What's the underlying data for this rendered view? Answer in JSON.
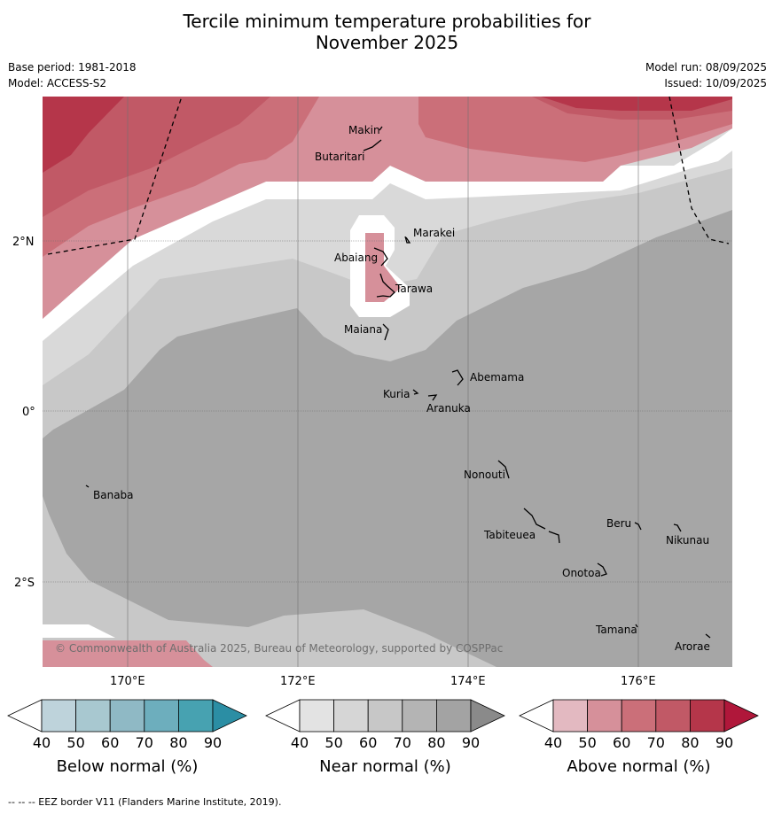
{
  "title_line1": "Tercile minimum temperature probabilities for",
  "title_line2": "November 2025",
  "base_period": "Base period: 1981-2018",
  "model": "Model: ACCESS-S2",
  "model_run": "Model run: 08/09/2025",
  "issued": "Issued: 10/09/2025",
  "copyright": "© Commonwealth of Australia 2025, Bureau of Meteorology, supported by COSPPac",
  "footnote": "--  --  -- EEZ border V11 (Flanders Marine Institute, 2019).",
  "map": {
    "lon_labels": [
      "170°E",
      "172°E",
      "174°E",
      "176°E"
    ],
    "lat_labels": [
      "2°N",
      "0°",
      "2°S"
    ],
    "places": [
      "Makin",
      "Butaritari",
      "Marakei",
      "Abaiang",
      "Tarawa",
      "Maiana",
      "Abemama",
      "Kuria",
      "Aranuka",
      "Nonouti",
      "Banaba",
      "Beru",
      "Nikunau",
      "Tabiteuea",
      "Onotoa",
      "Tamana",
      "Arorae"
    ]
  },
  "legends": [
    {
      "label": "Below normal (%)",
      "ticks": [
        "40",
        "50",
        "60",
        "70",
        "80",
        "90"
      ],
      "colors": [
        "#bed3db",
        "#a8c8d0",
        "#8fb9c5",
        "#6daebd",
        "#47a2b1",
        "#2b8ea4"
      ]
    },
    {
      "label": "Near normal (%)",
      "ticks": [
        "40",
        "50",
        "60",
        "70",
        "80",
        "90"
      ],
      "colors": [
        "#e3e3e3",
        "#d6d6d6",
        "#c7c7c7",
        "#b4b4b4",
        "#a3a3a3",
        "#8a8a8a"
      ]
    },
    {
      "label": "Above normal (%)",
      "ticks": [
        "40",
        "50",
        "60",
        "70",
        "80",
        "90"
      ],
      "colors": [
        "#e3b9c1",
        "#d6909a",
        "#cb6f79",
        "#c15966",
        "#b5364a",
        "#b0173a"
      ]
    }
  ]
}
